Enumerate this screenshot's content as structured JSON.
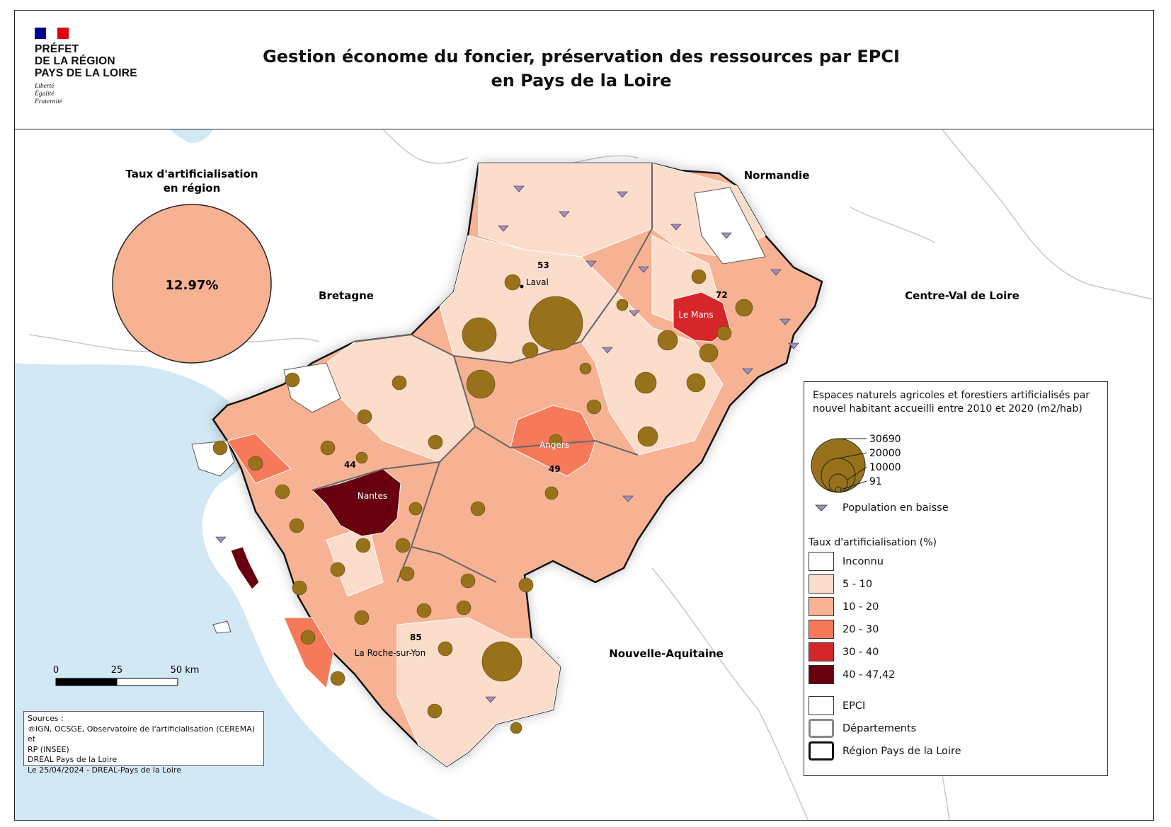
{
  "header": {
    "logo": {
      "line1": "PRÉFET",
      "line2": "DE LA RÉGION",
      "line3": "PAYS DE LA LOIRE",
      "motto1": "Liberté",
      "motto2": "Égalité",
      "motto3": "Fraternité",
      "flag_colors": [
        "#000091",
        "#ffffff",
        "#e1000f"
      ]
    },
    "title_line1": "Gestion économe du foncier, préservation des ressources par EPCI",
    "title_line2": "en Pays de la Loire"
  },
  "region_rate": {
    "heading_line1": "Taux d'artificialisation",
    "heading_line2": "en région",
    "value": "12.97%"
  },
  "neighbours": {
    "bretagne": "Bretagne",
    "normandie": "Normandie",
    "centre": "Centre-Val de Loire",
    "nouvelle_aquitaine": "Nouvelle-Aquitaine"
  },
  "cities": {
    "laval": "Laval",
    "le_mans": "Le Mans",
    "angers": "Angers",
    "nantes": "Nantes",
    "la_roche": "La Roche-sur-Yon"
  },
  "departments": {
    "d53": "53",
    "d72": "72",
    "d49": "49",
    "d44": "44",
    "d85": "85"
  },
  "legend": {
    "circles_title": "Espaces naturels agricoles et forestiers artificialisés par nouvel habitant accueilli entre 2010 et 2020 (m2/hab)",
    "circle_values": [
      "30690",
      "20000",
      "10000",
      "91"
    ],
    "population_decline": "Population en baisse",
    "rate_title": "Taux d'artificialisation (%)",
    "classes": [
      {
        "label": "Inconnu",
        "color": "#ffffff"
      },
      {
        "label": "5 - 10",
        "color": "#fcdccb"
      },
      {
        "label": "10 - 20",
        "color": "#f7b293"
      },
      {
        "label": "20 - 30",
        "color": "#f6795a"
      },
      {
        "label": "30 - 40",
        "color": "#d7262a"
      },
      {
        "label": "40 - 47,42",
        "color": "#68000f"
      }
    ],
    "epci": "EPCI",
    "departements": "Départements",
    "region": "Région Pays de la Loire"
  },
  "scale": {
    "t0": "0",
    "t1": "25",
    "t2": "50 km"
  },
  "sources": {
    "line1": "Sources :",
    "line2": "®IGN, OCSGE, Observatoire de l'artificialisation (CEREMA) et",
    "line3": "RP (INSEE)",
    "line4": "DREAL Pays de la Loire",
    "line5": "Le 25/04/2024 - DREAL-Pays de la Loire"
  },
  "colors": {
    "sea": "#d3e8f5",
    "circle": "#98721a",
    "triangle": "#9f8fc3",
    "region_rate_fill": "#f7b293"
  }
}
